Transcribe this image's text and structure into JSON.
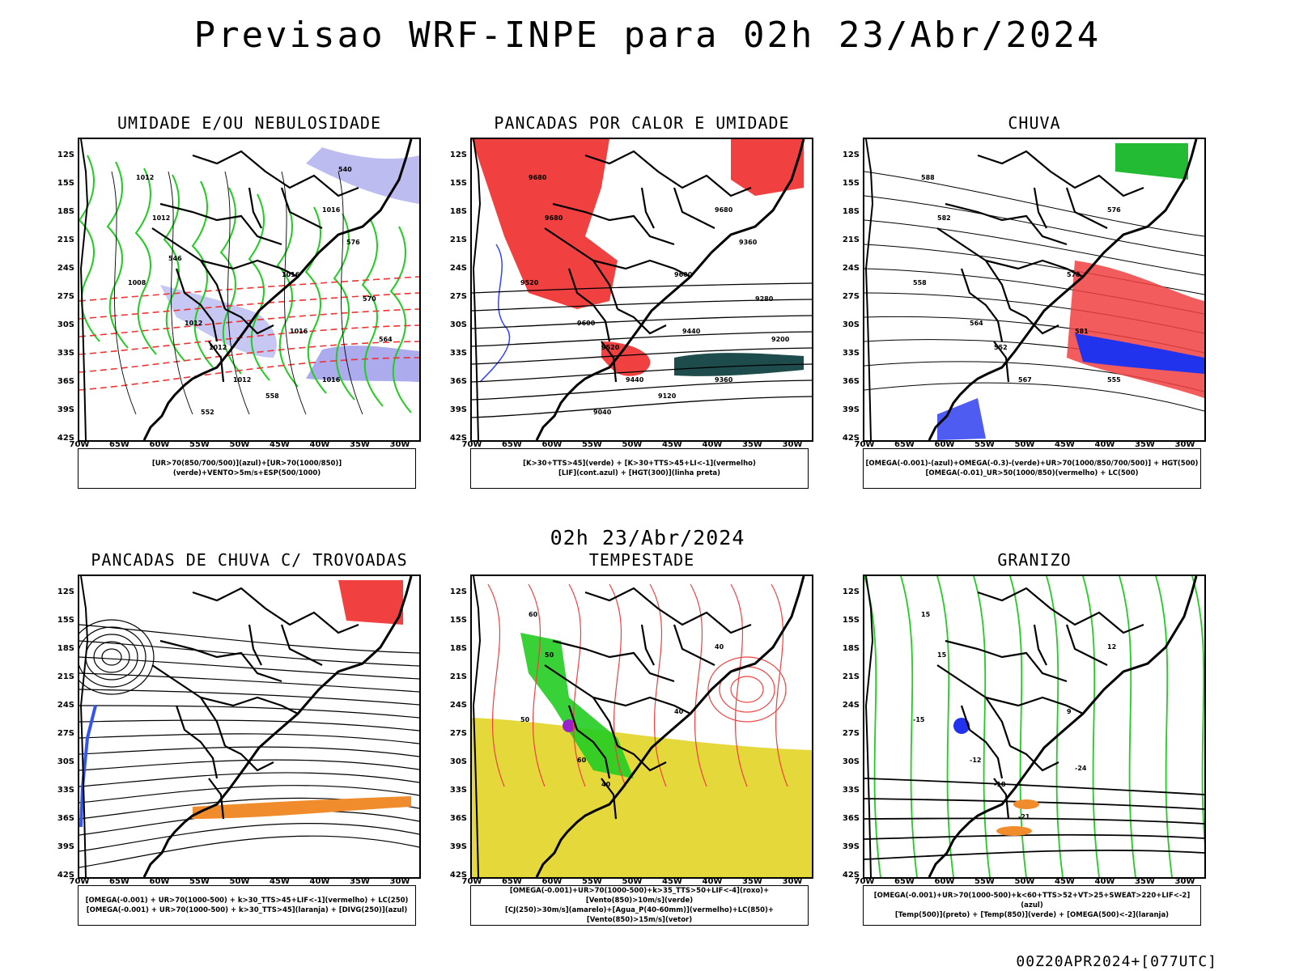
{
  "header": {
    "title": "Previsao WRF-INPE  para 02h 23/Abr/2024",
    "subtitle": "02h 23/Abr/2024",
    "footer": "00Z20APR2024+[077UTC]"
  },
  "axes": {
    "lat_labels": [
      "12S",
      "15S",
      "18S",
      "21S",
      "24S",
      "27S",
      "30S",
      "33S",
      "36S",
      "39S",
      "42S"
    ],
    "lon_labels": [
      "70W",
      "65W",
      "60W",
      "55W",
      "50W",
      "45W",
      "40W",
      "35W",
      "30W"
    ]
  },
  "panels": [
    {
      "title": "UMIDADE E/OU NEBULOSIDADE",
      "legend": [
        "[UR>70(850/700/500)](azul)+[UR>70(1000/850)](verde)+VENTO>5m/s+ESP(500/1000)"
      ],
      "contour_labels": [
        "1012",
        "1012",
        "1016",
        "1016",
        "1012",
        "1008",
        "1012",
        "1012",
        "1016",
        "1016",
        "576",
        "570",
        "564",
        "558",
        "552",
        "546",
        "540"
      ],
      "colors": {
        "blue": "#8f8fe8",
        "green": "#22cc22",
        "red": "#ee3333"
      }
    },
    {
      "title": "PANCADAS POR CALOR E UMIDADE",
      "legend": [
        "[K>30+TTS>45](verde) + [K>30+TTS>45+LI<-1](vermelho)",
        "[LIF](cont.azul) + [HGT(300)](linha preta)"
      ],
      "contour_labels": [
        "9680",
        "9680",
        "9680",
        "9600",
        "9600",
        "9520",
        "9520",
        "9440",
        "9440",
        "9360",
        "9360",
        "9280",
        "9200",
        "9120",
        "9040"
      ],
      "colors": {
        "red": "#f04040",
        "dark": "#1e4b4b",
        "blue": "#3344ff"
      }
    },
    {
      "title": "CHUVA",
      "legend": [
        "[OMEGA(-0.001)-(azul)+OMEGA(-0.3)-(verde)+UR>70(1000/850/700/500)] + HGT(500)",
        "[OMEGA(-0.01)_UR>50(1000/850)(vermelho) + LC(500)"
      ],
      "contour_labels": [
        "588",
        "582",
        "576",
        "570",
        "564",
        "558",
        "552",
        "567",
        "581",
        "555"
      ],
      "colors": {
        "red": "#f04040",
        "green": "#22bb33",
        "blue": "#2233ee"
      }
    },
    {
      "title": "PANCADAS DE CHUVA C/ TROVOADAS",
      "legend": [
        "[OMEGA(-0.001) + UR>70(1000-500) + k>30_TTS>45+LIF<-1](vermelho) + LC(250)",
        "[OMEGA(-0.001) + UR>70(1000-500) + k>30_TTS>45](laranja) + [DIVG(250)](azul)"
      ],
      "contour_labels": [],
      "colors": {
        "red": "#f04040",
        "orange": "#f08c2c",
        "blue": "#3355ee"
      }
    },
    {
      "title": "TEMPESTADE",
      "legend": [
        "[OMEGA(-0.001)+UR>70(1000-500)+k>35_TTS>50+LIF<-4](roxo)+[Vento(850)>10m/s](verde)",
        "[CJ(250)>30m/s](amarelo)+[Agua_P(40-60mm)](vermelho)+LC(850)+[Vento(850)>15m/s](vetor)"
      ],
      "contour_labels": [
        "60",
        "50",
        "40",
        "40",
        "60",
        "50",
        "40"
      ],
      "colors": {
        "yellow": "#e4d83a",
        "red": "#f04040",
        "green": "#22cc22",
        "purple": "#9922cc"
      }
    },
    {
      "title": "GRANIZO",
      "legend": [
        "[OMEGA(-0.001)+UR>70(1000-500)+k<60+TTS>52+VT>25+SWEAT>220+LIF<-2](azul)",
        "[Temp(500)](preto) + [Temp(850)](verde) + [OMEGA(500)<-2](laranja)"
      ],
      "contour_labels": [
        "15",
        "15",
        "12",
        "9",
        "-12",
        "-15",
        "-18",
        "-21",
        "-24"
      ],
      "colors": {
        "green": "#22cc22",
        "orange": "#f08c2c",
        "blue": "#2233ee"
      }
    }
  ]
}
